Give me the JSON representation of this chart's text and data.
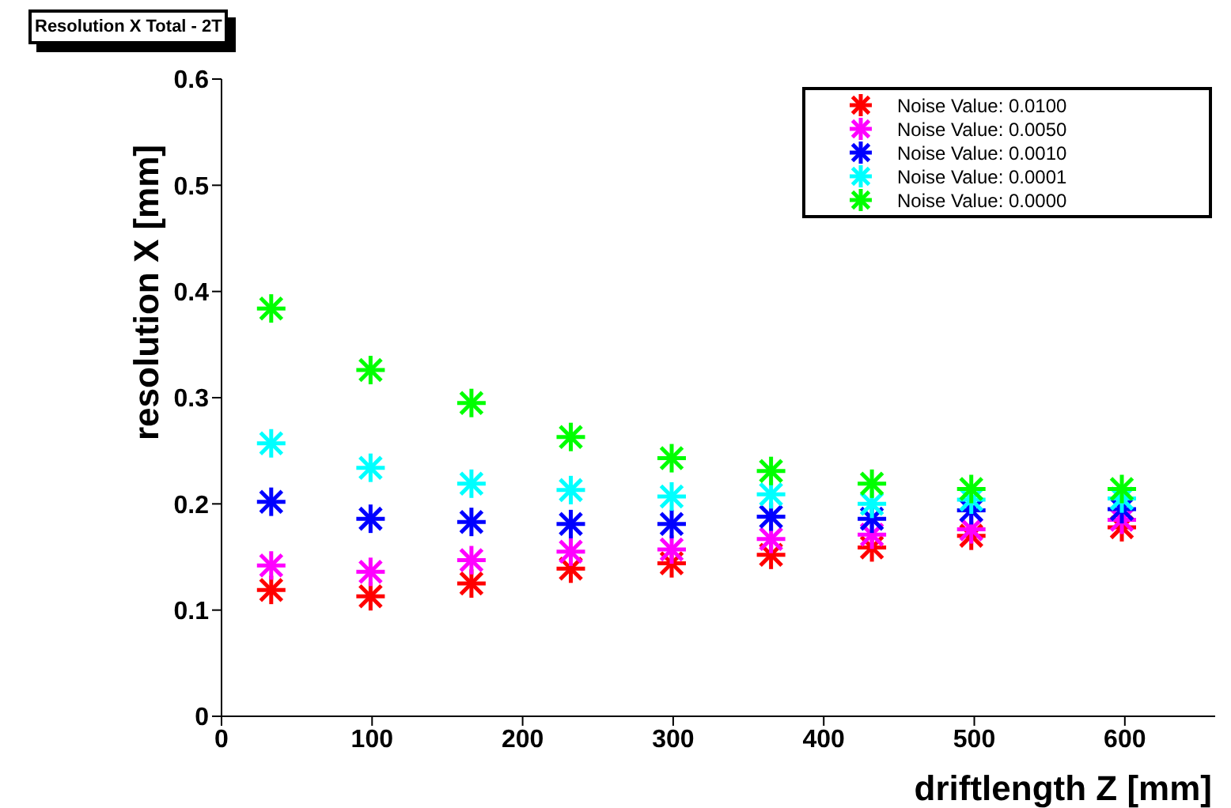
{
  "chart_data": {
    "type": "scatter",
    "title": "Resolution X Total - 2T",
    "xlabel": "driftlength Z [mm]",
    "ylabel": "resolution X [mm]",
    "x": [
      33,
      99,
      166,
      232,
      299,
      365,
      432,
      498,
      598
    ],
    "series": [
      {
        "name": "Noise Value: 0.0100",
        "color": "#ff0000",
        "values": [
          0.119,
          0.113,
          0.125,
          0.139,
          0.144,
          0.152,
          0.159,
          0.17,
          0.178
        ]
      },
      {
        "name": "Noise Value: 0.0050",
        "color": "#ff00ff",
        "values": [
          0.142,
          0.136,
          0.147,
          0.155,
          0.157,
          0.167,
          0.171,
          0.176,
          0.185
        ]
      },
      {
        "name": "Noise Value: 0.0010",
        "color": "#0000ff",
        "values": [
          0.202,
          0.186,
          0.183,
          0.181,
          0.181,
          0.188,
          0.186,
          0.194,
          0.195
        ]
      },
      {
        "name": "Noise Value: 0.0001",
        "color": "#00ffff",
        "values": [
          0.257,
          0.234,
          0.219,
          0.213,
          0.207,
          0.209,
          0.2,
          0.204,
          0.205
        ]
      },
      {
        "name": "Noise Value: 0.0000",
        "color": "#00ff00",
        "values": [
          0.384,
          0.326,
          0.295,
          0.263,
          0.243,
          0.231,
          0.219,
          0.214,
          0.214
        ]
      }
    ],
    "xlim": [
      0,
      660
    ],
    "xticks": [
      0,
      100,
      200,
      300,
      400,
      500,
      600
    ],
    "ylim": [
      0,
      0.6
    ],
    "yticks": [
      0,
      0.1,
      0.2,
      0.3,
      0.4,
      0.5,
      0.6
    ],
    "grid": false,
    "legend": "top right",
    "marker": "cross"
  }
}
